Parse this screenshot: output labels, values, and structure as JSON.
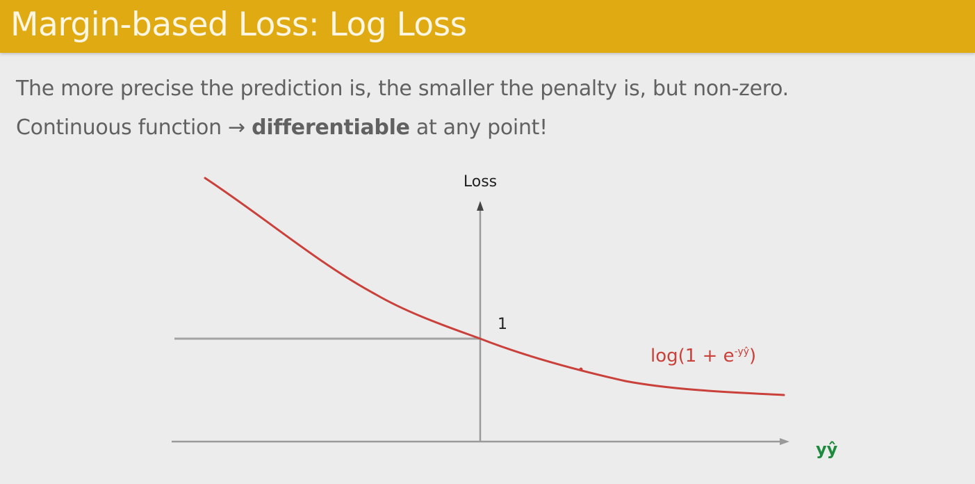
{
  "title": "Margin-based Loss: Log Loss",
  "body": {
    "line1": "The more precise the prediction is, the smaller the penalty is, but non-zero.",
    "line2_prefix": "Continuous function → ",
    "line2_bold": "differentiable",
    "line2_suffix": " at any point!"
  },
  "diagram": {
    "y_axis_label": "Loss",
    "x_axis_label": "yŷ",
    "intercept_label": "1",
    "curve_label_base": "log(1 + e",
    "curve_label_sup": "-yŷ",
    "curve_label_close": ")",
    "colors": {
      "curve": "#c9413a",
      "axes": "#9e9e9e",
      "x_label": "#1e8a3e",
      "title_bg": "#e0aa12"
    }
  }
}
